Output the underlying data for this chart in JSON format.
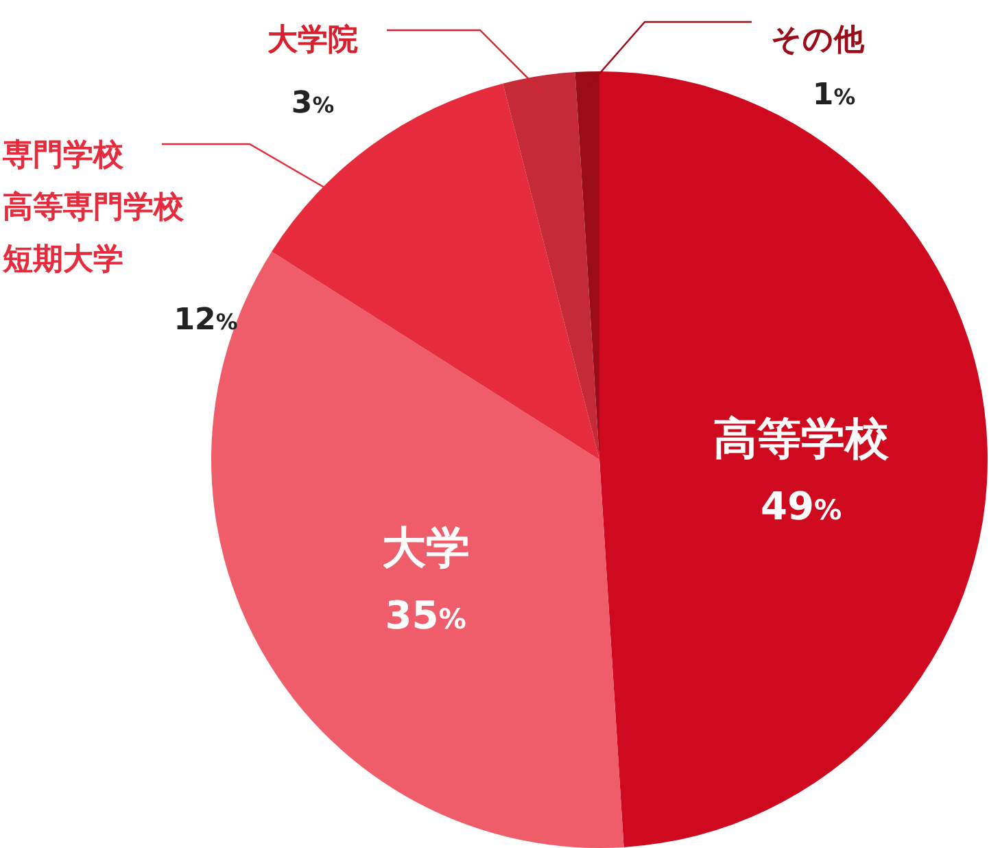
{
  "chart_data": {
    "type": "pie",
    "categories": [
      "高等学校",
      "大学",
      "専門学校高等専門学校短期大学",
      "大学院",
      "その他"
    ],
    "values": [
      49,
      35,
      12,
      3,
      1
    ],
    "value_labels": [
      "49%",
      "35%",
      "12%",
      "3%",
      "1%"
    ],
    "colors": [
      "#cf0a1e",
      "#f05d6a",
      "#e52b3c",
      "#c42a38",
      "#9b0c18"
    ]
  }
}
